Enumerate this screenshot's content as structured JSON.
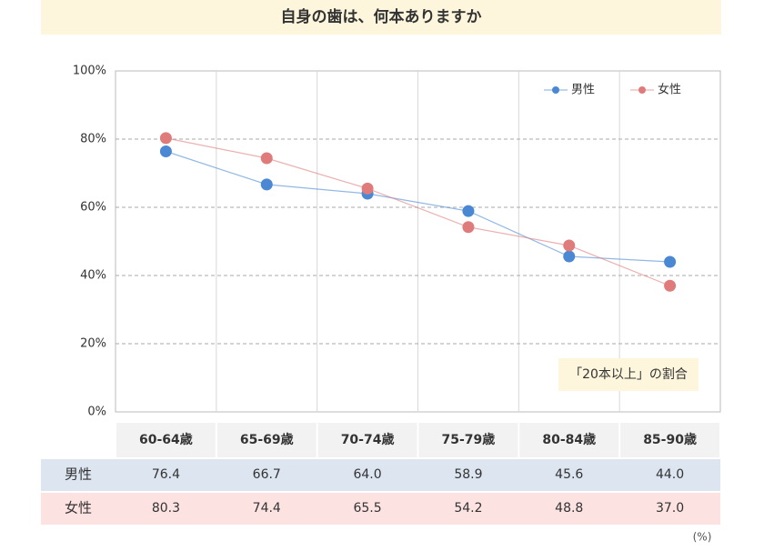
{
  "chart_data": {
    "type": "line",
    "title": "自身の歯は、何本ありますか",
    "categories": [
      "60-64歳",
      "65-69歳",
      "70-74歳",
      "75-79歳",
      "80-84歳",
      "85-90歳"
    ],
    "series": [
      {
        "name": "男性",
        "color": "#4a88d4",
        "values": [
          76.4,
          66.7,
          64.0,
          58.9,
          45.6,
          44.0
        ],
        "value_labels": [
          "76.4",
          "66.7",
          "64.0",
          "58.9",
          "45.6",
          "44.0"
        ]
      },
      {
        "name": "女性",
        "color": "#e07b7b",
        "values": [
          80.3,
          74.4,
          65.5,
          54.2,
          48.8,
          37.0
        ],
        "value_labels": [
          "80.3",
          "74.4",
          "65.5",
          "54.2",
          "48.8",
          "37.0"
        ]
      }
    ],
    "ylim": [
      0,
      100
    ],
    "yticks": [
      {
        "value": 0,
        "label": "0%"
      },
      {
        "value": 20,
        "label": "20%"
      },
      {
        "value": 40,
        "label": "40%"
      },
      {
        "value": 60,
        "label": "60%"
      },
      {
        "value": 80,
        "label": "80%"
      },
      {
        "value": 100,
        "label": "100%"
      }
    ],
    "grid": true,
    "legend": "top-right",
    "annotation": "「20本以上」の割合",
    "unit_note": "(%)"
  }
}
